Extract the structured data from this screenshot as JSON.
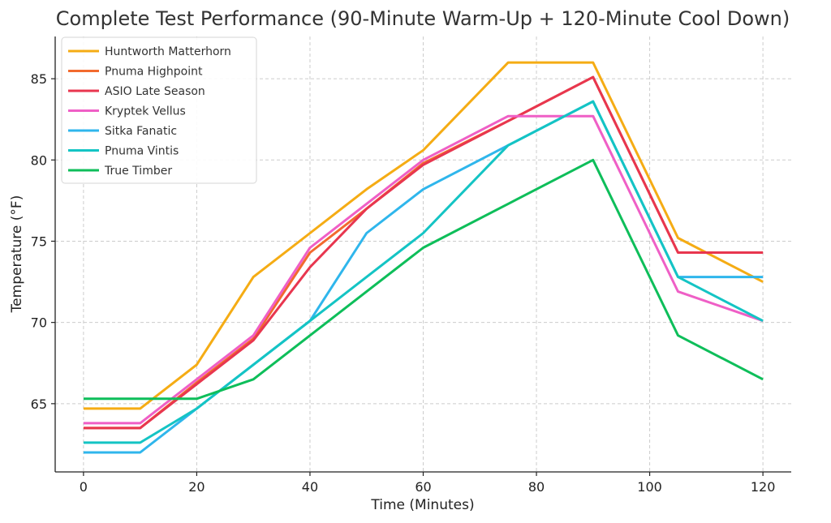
{
  "chart_data": {
    "type": "line",
    "title": "Complete Test Performance (90-Minute Warm-Up + 120-Minute Cool Down)",
    "xlabel": "Time (Minutes)",
    "ylabel": "Temperature (°F)",
    "xlim": [
      -5,
      125
    ],
    "ylim": [
      60.8,
      87.6
    ],
    "xticks": [
      0,
      20,
      40,
      60,
      80,
      100,
      120
    ],
    "yticks": [
      65,
      70,
      75,
      80,
      85
    ],
    "grid": true,
    "legend_position": "top-left",
    "series": [
      {
        "name": "Huntworth Matterhorn",
        "color": "#F5AC14",
        "x": [
          0,
          10,
          20,
          30,
          40,
          50,
          60,
          75,
          90,
          105,
          120
        ],
        "y": [
          64.7,
          64.7,
          67.4,
          72.8,
          75.5,
          78.2,
          80.6,
          86.0,
          86.0,
          75.2,
          72.5
        ]
      },
      {
        "name": "Pnuma Highpoint",
        "color": "#F26A2E",
        "x": [
          0,
          10,
          20,
          30,
          40,
          50,
          60,
          75,
          90,
          105,
          120
        ],
        "y": [
          63.5,
          63.5,
          66.3,
          69.0,
          74.3,
          77.0,
          79.8,
          82.4,
          85.1,
          74.3,
          74.3
        ]
      },
      {
        "name": "ASIO Late Season",
        "color": "#E8364F",
        "x": [
          0,
          10,
          20,
          30,
          40,
          50,
          60,
          75,
          90,
          105,
          120
        ],
        "y": [
          63.5,
          63.5,
          66.2,
          68.9,
          73.4,
          77.0,
          79.7,
          82.4,
          85.1,
          74.3,
          74.3
        ]
      },
      {
        "name": "Kryptek Vellus",
        "color": "#EF5FC6",
        "x": [
          0,
          10,
          20,
          30,
          40,
          50,
          60,
          75,
          90,
          105,
          120
        ],
        "y": [
          63.8,
          63.8,
          66.5,
          69.2,
          74.6,
          77.3,
          80.0,
          82.7,
          82.7,
          71.9,
          70.1
        ]
      },
      {
        "name": "Sitka Fanatic",
        "color": "#2FB6EC",
        "x": [
          0,
          10,
          20,
          30,
          40,
          50,
          60,
          75,
          90,
          105,
          120
        ],
        "y": [
          62.0,
          62.0,
          64.7,
          67.4,
          70.1,
          75.5,
          78.2,
          80.9,
          83.6,
          72.8,
          72.8
        ]
      },
      {
        "name": "Pnuma Vintis",
        "color": "#14C4C4",
        "x": [
          0,
          10,
          20,
          30,
          40,
          50,
          60,
          75,
          90,
          105,
          120
        ],
        "y": [
          62.6,
          62.6,
          64.7,
          67.4,
          70.1,
          72.8,
          75.5,
          80.9,
          83.6,
          72.8,
          70.1
        ]
      },
      {
        "name": "True Timber",
        "color": "#0EBE5A",
        "x": [
          0,
          10,
          20,
          30,
          40,
          50,
          60,
          75,
          90,
          105,
          120
        ],
        "y": [
          65.3,
          65.3,
          65.3,
          66.5,
          69.2,
          71.9,
          74.6,
          77.3,
          80.0,
          69.2,
          66.5
        ]
      }
    ]
  }
}
